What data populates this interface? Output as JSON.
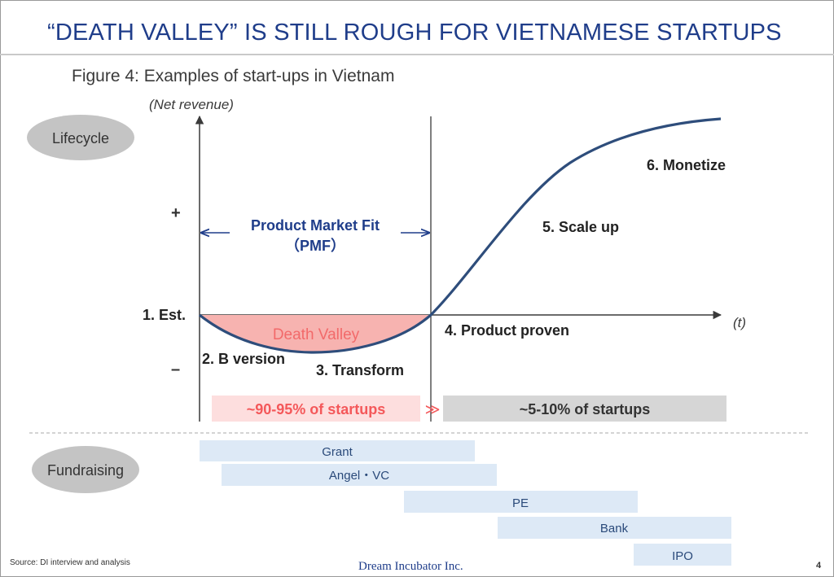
{
  "header": {
    "title": "“DEATH VALLEY” IS STILL ROUGH FOR VIETNAMESE STARTUPS",
    "caption": "Figure 4: Examples of start-ups in Vietnam"
  },
  "diagram": {
    "y_axis_label": "(Net revenue)",
    "x_axis_label": "(t)",
    "plus_sign": "+",
    "minus_sign": "–",
    "pmf_label_line1": "Product Market Fit",
    "pmf_label_line2": "（PMF）",
    "death_valley_label": "Death Valley",
    "stages": {
      "est": "1. Est.",
      "b_version": "2. B version",
      "transform": "3. Transform",
      "product_proven": "4. Product proven",
      "scale_up": "5. Scale up",
      "monetize": "6. Monetize"
    },
    "lifecycle_badge": "Lifecycle",
    "fundraising_badge": "Fundraising",
    "share_fail": "~90-95% of startups",
    "share_arrow": "≫",
    "share_success": "~5-10% of startups",
    "funding_bars": [
      {
        "label": "Grant"
      },
      {
        "label": "Angel・VC"
      },
      {
        "label": "PE"
      },
      {
        "label": "Bank"
      },
      {
        "label": "IPO"
      }
    ]
  },
  "colors": {
    "title": "#1f3d8a",
    "curve": "#2e4d7b",
    "death_valley_fill": "#f7b3b0",
    "death_valley_text": "#f26a6a",
    "fail_box": "#fddede",
    "fail_text": "#f4585a",
    "success_box": "#d6d6d6",
    "funding_bar": "#dde9f6",
    "badge": "#c4c4c4"
  },
  "footer": {
    "source": "Source: DI interview and analysis",
    "company": "Dream Incubator Inc.",
    "page_number": "4"
  }
}
